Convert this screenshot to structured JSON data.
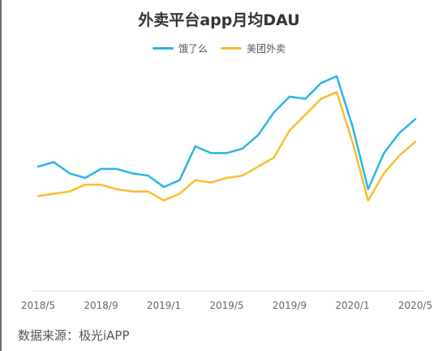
{
  "chart_data": {
    "type": "line",
    "title": "外卖平台app月均DAU",
    "xlabel": "",
    "ylabel": "",
    "x": [
      "2018/5",
      "2018/6",
      "2018/7",
      "2018/8",
      "2018/9",
      "2018/10",
      "2018/11",
      "2018/12",
      "2019/1",
      "2019/2",
      "2019/3",
      "2019/4",
      "2019/5",
      "2019/6",
      "2019/7",
      "2019/8",
      "2019/9",
      "2019/10",
      "2019/11",
      "2019/12",
      "2020/1",
      "2020/2",
      "2020/3",
      "2020/4",
      "2020/5"
    ],
    "x_ticks": [
      "2018/5",
      "2018/9",
      "2019/1",
      "2019/5",
      "2019/9",
      "2020/1",
      "2020/5"
    ],
    "ylim": [
      0,
      100
    ],
    "grid": false,
    "legend_position": "top",
    "series": [
      {
        "name": "饿了么",
        "color": "#29b6e6",
        "values": [
          55,
          57,
          52,
          50,
          54,
          54,
          52,
          51,
          46,
          49,
          64,
          61,
          61,
          63,
          69,
          79,
          86,
          85,
          92,
          95,
          73,
          45,
          61,
          70,
          76
        ]
      },
      {
        "name": "美团外卖",
        "color": "#fbbd2e",
        "values": [
          42,
          43,
          44,
          47,
          47,
          45,
          44,
          44,
          40,
          43,
          49,
          48,
          50,
          51,
          55,
          59,
          71,
          78,
          85,
          88,
          66,
          40,
          52,
          60,
          66
        ]
      }
    ]
  },
  "source_text": "数据来源：极光iAPP"
}
